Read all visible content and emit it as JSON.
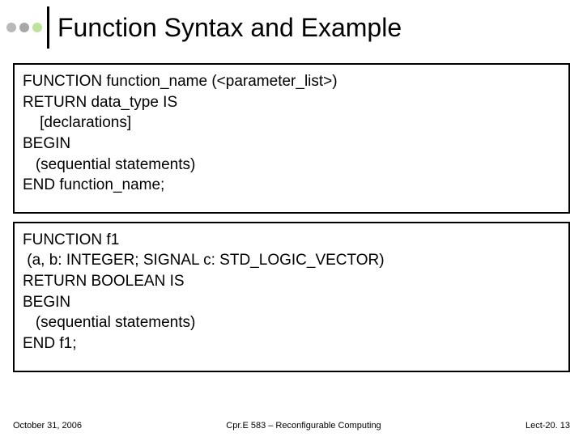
{
  "header": {
    "title": "Function Syntax and Example",
    "dot_colors": [
      "#b9b9b9",
      "#a7a7a7",
      "#bfe29c"
    ]
  },
  "box1": {
    "lines": [
      "FUNCTION function_name (<parameter_list>)",
      "RETURN data_type IS",
      "    [declarations]",
      "BEGIN",
      "   (sequential statements)",
      "END function_name;"
    ]
  },
  "box2": {
    "lines": [
      "FUNCTION f1",
      " (a, b: INTEGER; SIGNAL c: STD_LOGIC_VECTOR)",
      "RETURN BOOLEAN IS",
      "BEGIN",
      "   (sequential statements)",
      "END f1;"
    ]
  },
  "footer": {
    "left": "October 31, 2006",
    "center": "Cpr.E 583 – Reconfigurable Computing",
    "right": "Lect-20. 13"
  },
  "colors": {
    "border": "#000000",
    "text": "#000000",
    "background": "#ffffff"
  }
}
